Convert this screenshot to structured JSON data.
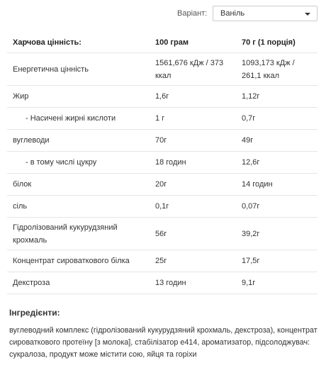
{
  "variant": {
    "label": "Варіант:",
    "value": "Ваніль"
  },
  "table": {
    "header": [
      "Харчова цінність:",
      "100 грам",
      "70 г (1 порція)"
    ],
    "rows": [
      [
        "Енергетична цінність",
        "1561,676 кДж / 373 ккал",
        "1093,173 кДж / 261,1 ккал"
      ],
      [
        "Жир",
        "1,6г",
        "1,12г"
      ],
      [
        "- Насичені жирні кислоти",
        "1 г",
        "0,7г"
      ],
      [
        "вуглеводи",
        "70г",
        "49г"
      ],
      [
        "- в тому числі цукру",
        "18 годин",
        "12,6г"
      ],
      [
        "білок",
        "20г",
        "14 годин"
      ],
      [
        "сіль",
        "0,1г",
        "0,07г"
      ],
      [
        "Гідролізований кукурудзяний крохмаль",
        "56г",
        "39,2г"
      ],
      [
        "Концентрат сироваткового білка",
        "25г",
        "17,5г"
      ],
      [
        "Декстроза",
        "13 годин",
        "9,1г"
      ]
    ]
  },
  "ingredients": {
    "title": "Інгредієнти:",
    "text": "вуглеводний комплекс (гідролізований кукурудзяний крохмаль, декстроза), концентрат сироваткового протеїну [з молока], стабілізатор е414, ароматизатор, підсолоджувач: сукралоза, продукт може містити сою, яйця та горіхи"
  }
}
